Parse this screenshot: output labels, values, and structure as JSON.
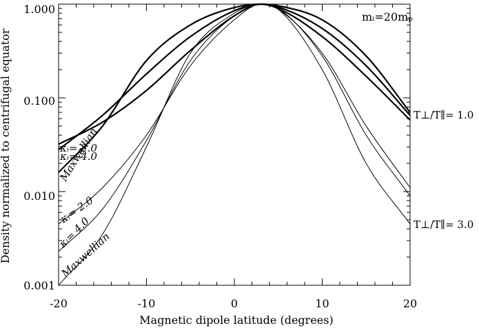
{
  "chart_data": {
    "type": "line",
    "xlabel": "Magnetic dipole latitude (degrees)",
    "ylabel": "Density normalized to centrifugal equator",
    "xlim": [
      -20,
      20
    ],
    "ylim": [
      0.001,
      1.0
    ],
    "yscale": "log",
    "x_ticks": [
      "-20",
      "-10",
      "0",
      "10",
      "20"
    ],
    "y_ticks": [
      "0.001",
      "0.010",
      "0.100",
      "1.000"
    ],
    "mass_label": "mᵢ=20mₚ",
    "side_labels": {
      "upper": "T⊥/T∥= 1.0",
      "lower": "T⊥/T∥= 3.0"
    },
    "annotations": {
      "upper_kappa2": "κᵢ= 2.0",
      "upper_kappa4": "κᵢ= 4.0",
      "upper_maxwellian": "Maxwellian",
      "lower_kappa2": "κᵢ= 2.0",
      "lower_kappa4": "κᵢ= 4.0",
      "lower_maxwellian": "Maxwellian"
    },
    "x": [
      -20,
      -15,
      -10,
      -5,
      0,
      3,
      5,
      10,
      15,
      20
    ],
    "series": [
      {
        "group": "T⊥/T∥=1.0",
        "style": "thick",
        "values": [
          0.032,
          0.055,
          0.12,
          0.32,
          0.75,
          1.0,
          0.9,
          0.45,
          0.17,
          0.058
        ]
      },
      {
        "group": "T⊥/T∥=1.0",
        "style": "thick",
        "values": [
          0.028,
          0.065,
          0.18,
          0.45,
          0.85,
          1.0,
          0.93,
          0.55,
          0.22,
          0.065
        ]
      },
      {
        "group": "T⊥/T∥=1.0",
        "style": "thick",
        "values": [
          0.016,
          0.05,
          0.25,
          0.6,
          0.92,
          1.0,
          0.96,
          0.68,
          0.28,
          0.07
        ]
      },
      {
        "group": "T⊥/T∥=3.0",
        "style": "thin",
        "values": [
          0.0045,
          0.011,
          0.04,
          0.22,
          0.68,
          1.0,
          0.88,
          0.3,
          0.05,
          0.011
        ]
      },
      {
        "group": "T⊥/T∥=3.0",
        "style": "thin",
        "values": [
          0.0023,
          0.0065,
          0.035,
          0.25,
          0.75,
          1.0,
          0.9,
          0.28,
          0.04,
          0.009
        ]
      },
      {
        "group": "T⊥/T∥=3.0",
        "style": "thin",
        "values": [
          0.001,
          0.0035,
          0.03,
          0.3,
          0.8,
          1.0,
          0.88,
          0.2,
          0.02,
          0.0045
        ]
      }
    ]
  }
}
